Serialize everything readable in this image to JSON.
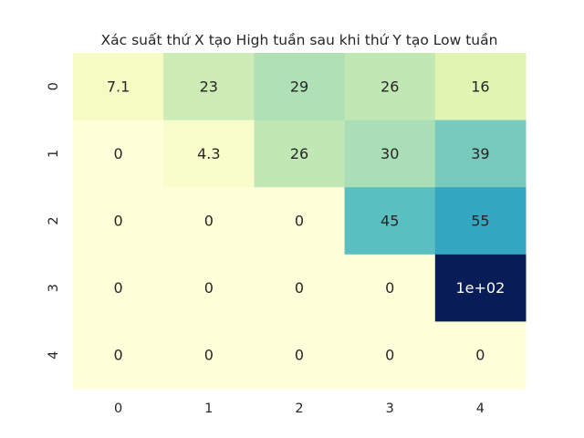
{
  "chart_data": {
    "type": "heatmap",
    "title": "Xác suất thứ X tạo High tuần sau khi thứ Y tạo Low tuần",
    "xlabel": "",
    "ylabel": "",
    "x_categories": [
      "0",
      "1",
      "2",
      "3",
      "4"
    ],
    "y_categories": [
      "0",
      "1",
      "2",
      "3",
      "4"
    ],
    "values": [
      [
        7.1,
        23,
        29,
        26,
        16
      ],
      [
        0,
        4.3,
        26,
        30,
        39
      ],
      [
        0,
        0,
        0,
        45,
        55
      ],
      [
        0,
        0,
        0,
        0,
        100
      ],
      [
        0,
        0,
        0,
        0,
        0
      ]
    ],
    "cell_labels": [
      [
        "7.1",
        "23",
        "29",
        "26",
        "16"
      ],
      [
        "0",
        "4.3",
        "26",
        "30",
        "39"
      ],
      [
        "0",
        "0",
        "0",
        "45",
        "55"
      ],
      [
        "0",
        "0",
        "0",
        "0",
        "1e+02"
      ],
      [
        "0",
        "0",
        "0",
        "0",
        "0"
      ]
    ],
    "color_range": [
      0,
      100
    ],
    "colormap": "YlGnBu",
    "colorbar": false,
    "grid": false
  }
}
